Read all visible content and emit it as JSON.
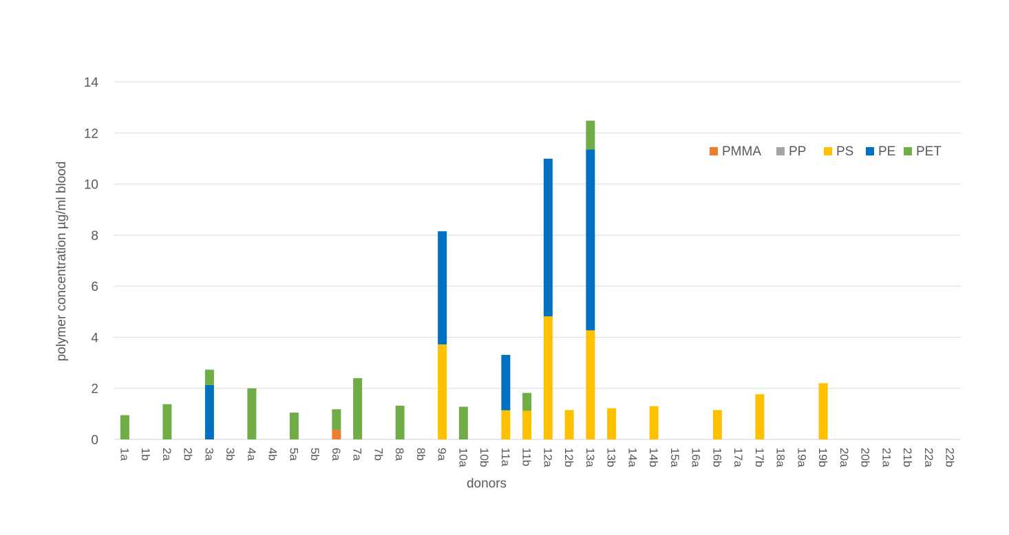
{
  "chart_data": {
    "type": "bar",
    "stacked": true,
    "title": "",
    "xlabel": "donors",
    "ylabel": "polymer concentration µg/ml blood",
    "ylim": [
      0,
      14
    ],
    "yticks": [
      0,
      2,
      4,
      6,
      8,
      10,
      12,
      14
    ],
    "grid": true,
    "legend_position": "top-right",
    "categories": [
      "1a",
      "1b",
      "2a",
      "2b",
      "3a",
      "3b",
      "4a",
      "4b",
      "5a",
      "5b",
      "6a",
      "7a",
      "7b",
      "8a",
      "8b",
      "9a",
      "10a",
      "10b",
      "11a",
      "11b",
      "12a",
      "12b",
      "13a",
      "13b",
      "14a",
      "14b",
      "15a",
      "16a",
      "16b",
      "17a",
      "17b",
      "18a",
      "19a",
      "19b",
      "20a",
      "20b",
      "21a",
      "21b",
      "22a",
      "22b"
    ],
    "series": [
      {
        "name": "PMMA",
        "color": "#ED7D31",
        "values": [
          0,
          0,
          0,
          0,
          0,
          0,
          0,
          0,
          0,
          0,
          0.38,
          0,
          0,
          0,
          0,
          0,
          0,
          0,
          0,
          0,
          0,
          0,
          0,
          0,
          0,
          0,
          0,
          0,
          0,
          0,
          0,
          0,
          0,
          0,
          0,
          0,
          0,
          0,
          0,
          0
        ]
      },
      {
        "name": "PP",
        "color": "#A5A5A5",
        "values": [
          0,
          0,
          0,
          0,
          0,
          0,
          0,
          0,
          0,
          0,
          0,
          0,
          0,
          0,
          0,
          0,
          0,
          0,
          0,
          0,
          0,
          0,
          0,
          0,
          0,
          0,
          0,
          0,
          0,
          0,
          0,
          0,
          0,
          0,
          0,
          0,
          0,
          0,
          0,
          0
        ]
      },
      {
        "name": "PS",
        "color": "#FFC000",
        "values": [
          0,
          0,
          0,
          0,
          0,
          0,
          0,
          0,
          0,
          0,
          0,
          0,
          0,
          0,
          0,
          3.72,
          0,
          0,
          1.14,
          1.12,
          4.82,
          1.15,
          4.27,
          1.22,
          0,
          1.3,
          0,
          0,
          1.15,
          0,
          1.77,
          0,
          0,
          2.2,
          0,
          0,
          0,
          0,
          0,
          0
        ]
      },
      {
        "name": "PE",
        "color": "#0070C0",
        "values": [
          0,
          0,
          0,
          0,
          2.13,
          0,
          0,
          0,
          0,
          0,
          0,
          0,
          0,
          0,
          0,
          4.43,
          0,
          0,
          2.17,
          0,
          6.17,
          0,
          7.08,
          0,
          0,
          0,
          0,
          0,
          0,
          0,
          0,
          0,
          0,
          0,
          0,
          0,
          0,
          0,
          0,
          0
        ]
      },
      {
        "name": "PET",
        "color": "#70AD47",
        "values": [
          0.95,
          0,
          1.38,
          0,
          0.6,
          0,
          2.0,
          0,
          1.05,
          0,
          0.8,
          2.4,
          0,
          1.32,
          0,
          0,
          1.28,
          0,
          0,
          0.7,
          0,
          0,
          1.13,
          0,
          0,
          0,
          0,
          0,
          0,
          0,
          0,
          0,
          0,
          0,
          0,
          0,
          0,
          0,
          0,
          0
        ]
      }
    ]
  }
}
